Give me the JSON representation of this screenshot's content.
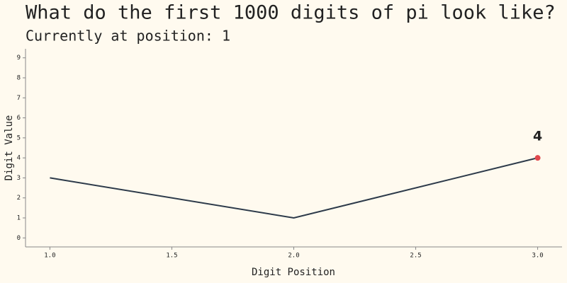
{
  "chart_data": {
    "type": "line",
    "title": "What do the first 1000 digits of pi look like?",
    "subtitle": "Currently at position: 1",
    "xlabel": "Digit Position",
    "ylabel": "Digit Value",
    "x": [
      1,
      2,
      3
    ],
    "values": [
      3,
      1,
      4
    ],
    "color": "#2d3a4a",
    "highlight_color": "#e0474c",
    "xlim": [
      0.9,
      3.1
    ],
    "xticks": [
      {
        "value": 1,
        "label": "1.0"
      },
      {
        "value": 1.5,
        "label": "1.5"
      },
      {
        "value": 2,
        "label": "2.0"
      },
      {
        "value": 2.5,
        "label": "2.5"
      },
      {
        "value": 3,
        "label": "3.0"
      }
    ],
    "ylim": [
      -0.45,
      9.45
    ],
    "yticks": [
      0,
      1,
      2,
      3,
      4,
      5,
      6,
      7,
      8,
      9
    ],
    "grid": false
  }
}
